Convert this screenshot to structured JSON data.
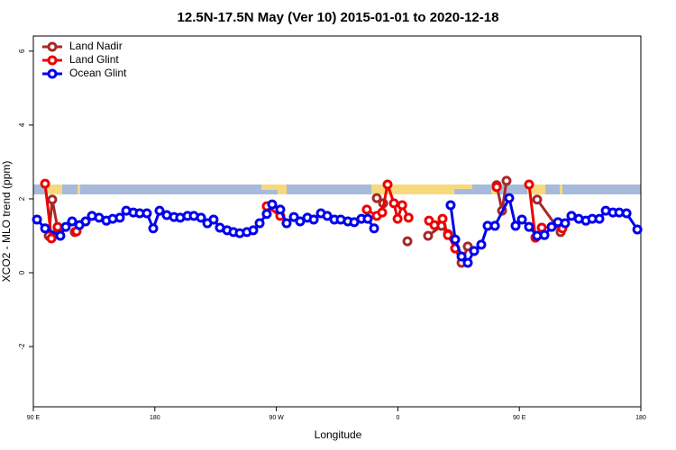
{
  "chart_data": {
    "type": "line",
    "title": "12.5N-17.5N May (Ver 10)   2015-01-01 to 2020-12-18",
    "x_label": "Longitude",
    "y_label": "XCO2 - MLO trend (ppm)",
    "xlim": [
      90,
      540
    ],
    "ylim": [
      -3.63,
      6.41
    ],
    "xticks": [
      {
        "value": 90,
        "label": "90 E"
      },
      180,
      {
        "value": 270,
        "label": "90 W"
      },
      {
        "value": 360,
        "label": "0"
      },
      {
        "value": 450,
        "label": "90 E"
      },
      {
        "value": 540,
        "label": "180"
      }
    ],
    "yticks": [
      -2,
      0,
      2,
      4,
      6
    ],
    "legend": "top-left",
    "series": [
      {
        "name": "Land Nadir",
        "color": "#a52a2a",
        "x": [
          101.4,
          104.0,
          108.0,
          null,
          120.7,
          null,
          344.4,
          349.1,
          null,
          367.1,
          null,
          382.4,
          392.4,
          397.1,
          402.5,
          407.2,
          411.8,
          null,
          433.2,
          437.2,
          440.5,
          null,
          463.2,
          480.6
        ],
        "values": [
          1.0,
          1.98,
          1.2,
          null,
          1.1,
          null,
          2.02,
          1.88,
          null,
          0.85,
          null,
          1.0,
          1.27,
          1.05,
          0.66,
          0.27,
          0.71,
          null,
          2.37,
          1.68,
          2.49,
          null,
          1.98,
          1.1
        ]
      },
      {
        "name": "Land Glint",
        "color": "#ee0000",
        "x": [
          98.7,
          103.4,
          108.0,
          null,
          122.0,
          null,
          262.9,
          272.9,
          null,
          337.0,
          344.4,
          348.4,
          352.4,
          357.1,
          359.8,
          363.2,
          367.9,
          null,
          383.1,
          387.1,
          393.1,
          397.1,
          402.5,
          null,
          433.2,
          null,
          457.2,
          461.9,
          466.6,
          null,
          481.9
        ],
        "values": [
          2.41,
          0.93,
          1.24,
          null,
          1.12,
          null,
          1.8,
          1.54,
          null,
          1.71,
          1.54,
          1.63,
          2.39,
          1.88,
          1.46,
          1.83,
          1.49,
          null,
          1.41,
          1.29,
          1.46,
          1.02,
          0.66,
          null,
          2.32,
          null,
          2.39,
          0.95,
          1.22,
          null,
          1.2
        ]
      },
      {
        "name": "Ocean Glint",
        "color": "#0000ee",
        "x": [
          92.7,
          98.7,
          110.0,
          114.0,
          118.7,
          124.1,
          128.7,
          133.4,
          138.7,
          144.1,
          148.8,
          154.1,
          158.8,
          164.1,
          168.8,
          174.1,
          178.8,
          183.5,
          188.8,
          194.2,
          198.8,
          204.2,
          208.9,
          214.2,
          218.9,
          223.5,
          228.2,
          233.6,
          238.2,
          242.9,
          248.2,
          252.9,
          257.6,
          262.9,
          266.9,
          272.9,
          277.6,
          283.0,
          287.6,
          293.0,
          297.7,
          303.0,
          307.7,
          313.0,
          317.7,
          323.0,
          327.7,
          333.0,
          337.7,
          342.4,
          null,
          399.1,
          402.5,
          407.2,
          411.8,
          416.5,
          421.8,
          426.5,
          431.9,
          442.5,
          447.2,
          451.9,
          457.2,
          463.2,
          468.6,
          473.9,
          478.6,
          483.9,
          488.6,
          494.0,
          499.3,
          504.0,
          509.3,
          514.0,
          519.3,
          524.0,
          529.4,
          537.4
        ],
        "values": [
          1.44,
          1.2,
          1.0,
          1.24,
          1.39,
          1.29,
          1.39,
          1.54,
          1.49,
          1.41,
          1.46,
          1.49,
          1.68,
          1.63,
          1.61,
          1.61,
          1.2,
          1.68,
          1.56,
          1.51,
          1.49,
          1.54,
          1.54,
          1.49,
          1.34,
          1.44,
          1.22,
          1.15,
          1.1,
          1.07,
          1.1,
          1.15,
          1.34,
          1.59,
          1.85,
          1.71,
          1.34,
          1.51,
          1.39,
          1.49,
          1.44,
          1.61,
          1.54,
          1.44,
          1.44,
          1.39,
          1.37,
          1.46,
          1.46,
          1.2,
          null,
          1.83,
          0.9,
          0.44,
          0.27,
          0.59,
          0.76,
          1.27,
          1.27,
          2.02,
          1.27,
          1.44,
          1.24,
          1.0,
          1.02,
          1.24,
          1.37,
          1.34,
          1.54,
          1.46,
          1.41,
          1.46,
          1.46,
          1.68,
          1.63,
          1.63,
          1.61,
          1.17
        ]
      }
    ]
  }
}
